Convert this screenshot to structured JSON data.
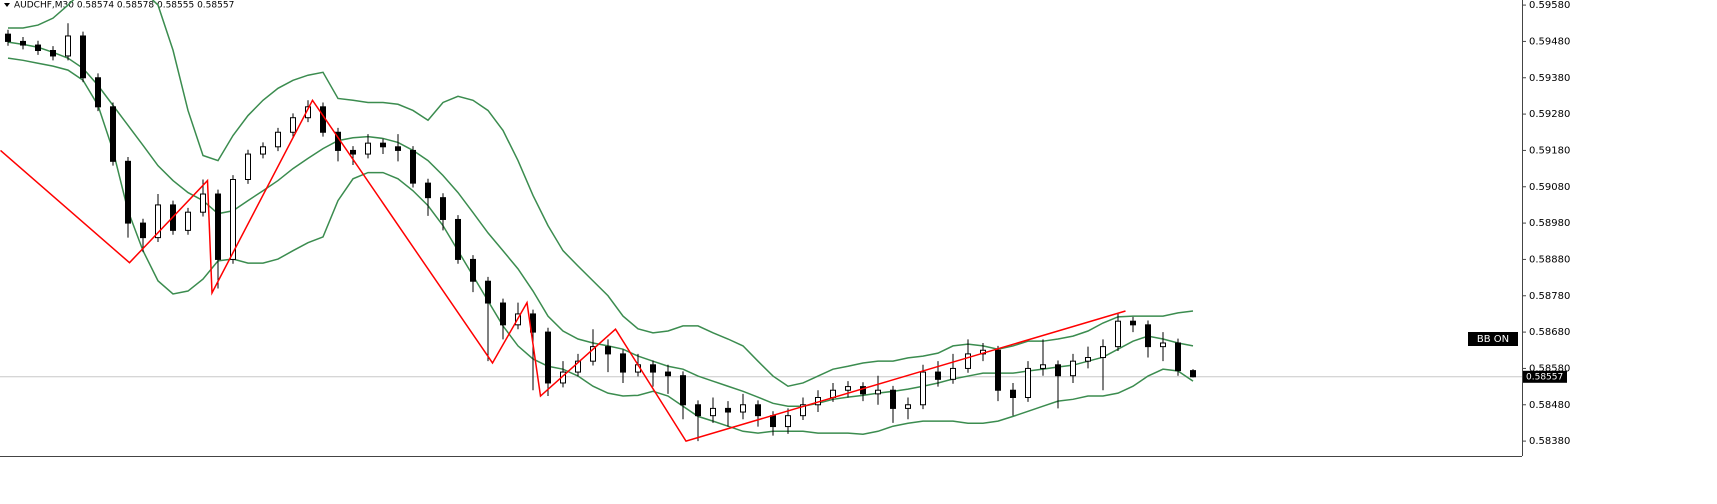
{
  "chart_data": {
    "type": "candlestick",
    "title": "AUDCHF,M30  0.58574 0.58578 0.58555 0.58557",
    "open": [
      0.595,
      0.5948,
      0.5947,
      0.59455,
      0.5944,
      0.59495,
      0.5938,
      0.593,
      0.5915,
      0.5898,
      0.5894,
      0.5903,
      0.5896,
      0.5901,
      0.5906,
      0.5888,
      0.591,
      0.5917,
      0.5919,
      0.5923,
      0.5927,
      0.593,
      0.5923,
      0.5918,
      0.5917,
      0.592,
      0.5919,
      0.5918,
      0.5909,
      0.5905,
      0.5899,
      0.5888,
      0.5882,
      0.5876,
      0.587,
      0.5873,
      0.5868,
      0.5854,
      0.5857,
      0.586,
      0.5864,
      0.5862,
      0.5857,
      0.5859,
      0.5857,
      0.5856,
      0.5848,
      0.5845,
      0.5847,
      0.5846,
      0.5848,
      0.5845,
      0.5842,
      0.5845,
      0.5848,
      0.585,
      0.5852,
      0.5853,
      0.5851,
      0.5852,
      0.5847,
      0.5848,
      0.5857,
      0.5855,
      0.5858,
      0.5862,
      0.5863,
      0.5852,
      0.585,
      0.5858,
      0.5859,
      0.5856,
      0.586,
      0.5861,
      0.5864,
      0.5871,
      0.587,
      0.5864,
      0.5865,
      0.58574
    ],
    "high": [
      0.59512,
      0.59492,
      0.59482,
      0.59467,
      0.5953,
      0.59507,
      0.59392,
      0.59312,
      0.59162,
      0.58992,
      0.5906,
      0.59042,
      0.59022,
      0.591,
      0.59072,
      0.59112,
      0.59182,
      0.59202,
      0.59242,
      0.59282,
      0.59318,
      0.59312,
      0.59242,
      0.59192,
      0.59225,
      0.59212,
      0.59225,
      0.59192,
      0.59102,
      0.59062,
      0.59002,
      0.58892,
      0.58832,
      0.58772,
      0.58761,
      0.58742,
      0.58692,
      0.586,
      0.5862,
      0.58688,
      0.5866,
      0.58632,
      0.5862,
      0.58602,
      0.5859,
      0.58572,
      0.58492,
      0.585,
      0.5849,
      0.5851,
      0.58492,
      0.58462,
      0.5847,
      0.585,
      0.5852,
      0.5854,
      0.58545,
      0.58542,
      0.5856,
      0.58532,
      0.585,
      0.5859,
      0.586,
      0.5862,
      0.5866,
      0.5865,
      0.58642,
      0.5854,
      0.586,
      0.5866,
      0.58602,
      0.5862,
      0.5864,
      0.5866,
      0.5873,
      0.58722,
      0.58712,
      0.5868,
      0.58662,
      0.58578
    ],
    "low": [
      0.59468,
      0.59458,
      0.59443,
      0.59428,
      0.59428,
      0.59368,
      0.59288,
      0.59138,
      0.5894,
      0.589,
      0.58928,
      0.58948,
      0.58948,
      0.58998,
      0.588,
      0.58868,
      0.59088,
      0.59158,
      0.59178,
      0.59218,
      0.59258,
      0.59218,
      0.5915,
      0.5914,
      0.59158,
      0.5917,
      0.5915,
      0.59078,
      0.59,
      0.5896,
      0.58868,
      0.5879,
      0.586,
      0.5866,
      0.58688,
      0.5852,
      0.58504,
      0.58528,
      0.58558,
      0.58588,
      0.5857,
      0.5854,
      0.58558,
      0.5853,
      0.5851,
      0.5844,
      0.5838,
      0.5843,
      0.5842,
      0.5844,
      0.5842,
      0.58395,
      0.584,
      0.58438,
      0.5846,
      0.58488,
      0.585,
      0.5849,
      0.5848,
      0.5843,
      0.5844,
      0.58468,
      0.5853,
      0.58538,
      0.58568,
      0.586,
      0.5849,
      0.5845,
      0.58488,
      0.5856,
      0.5847,
      0.5854,
      0.5858,
      0.5852,
      0.58628,
      0.5868,
      0.5861,
      0.586,
      0.5856,
      0.58555
    ],
    "close": [
      0.5948,
      0.5947,
      0.59455,
      0.5944,
      0.59495,
      0.5938,
      0.593,
      0.5915,
      0.5898,
      0.5894,
      0.5903,
      0.5896,
      0.5901,
      0.5906,
      0.5888,
      0.591,
      0.5917,
      0.5919,
      0.5923,
      0.5927,
      0.593,
      0.5923,
      0.5918,
      0.5917,
      0.592,
      0.5919,
      0.5918,
      0.5909,
      0.5905,
      0.5899,
      0.5888,
      0.5882,
      0.5876,
      0.587,
      0.5873,
      0.5868,
      0.5854,
      0.5857,
      0.586,
      0.5864,
      0.5862,
      0.5857,
      0.5859,
      0.5857,
      0.5856,
      0.5848,
      0.5845,
      0.5847,
      0.5846,
      0.5848,
      0.5845,
      0.5842,
      0.5845,
      0.5848,
      0.585,
      0.5852,
      0.5853,
      0.5851,
      0.5852,
      0.5847,
      0.5848,
      0.5857,
      0.5855,
      0.5858,
      0.5862,
      0.5863,
      0.5852,
      0.585,
      0.5858,
      0.5859,
      0.5856,
      0.586,
      0.5861,
      0.5864,
      0.5871,
      0.587,
      0.5864,
      0.5865,
      0.58574,
      0.58557
    ],
    "up_color": "#ffffff",
    "down_color": "#000000",
    "edge_color": "#000000",
    "bands": {
      "color": "#3b8c4f",
      "upper": [
        0.59517,
        0.59517,
        0.59525,
        0.59544,
        0.5958,
        0.5962,
        0.5965,
        0.5966,
        0.5964,
        0.5962,
        0.5958,
        0.59456,
        0.5929,
        0.59166,
        0.59152,
        0.59221,
        0.59276,
        0.59318,
        0.59351,
        0.59373,
        0.59387,
        0.59395,
        0.59323,
        0.59318,
        0.59312,
        0.59312,
        0.59307,
        0.5929,
        0.59263,
        0.59312,
        0.59329,
        0.59318,
        0.5929,
        0.59235,
        0.59152,
        0.59056,
        0.58973,
        0.58904,
        0.58862,
        0.58821,
        0.5878,
        0.58724,
        0.58689,
        0.58678,
        0.58683,
        0.58697,
        0.58697,
        0.58678,
        0.58661,
        0.58642,
        0.586,
        0.58559,
        0.58531,
        0.5854,
        0.58559,
        0.58578,
        0.58586,
        0.58595,
        0.586,
        0.586,
        0.58609,
        0.58614,
        0.58622,
        0.58642,
        0.58647,
        0.58642,
        0.58633,
        0.58642,
        0.58655,
        0.58655,
        0.58661,
        0.58669,
        0.58683,
        0.58705,
        0.58722,
        0.58724,
        0.58724,
        0.58724,
        0.58733,
        0.58738
      ],
      "middle": [
        0.59478,
        0.59472,
        0.59464,
        0.5945,
        0.59434,
        0.59406,
        0.59359,
        0.59304,
        0.59249,
        0.59194,
        0.59138,
        0.59097,
        0.59064,
        0.59042,
        0.59006,
        0.59014,
        0.59042,
        0.59069,
        0.59097,
        0.5913,
        0.59158,
        0.59185,
        0.59207,
        0.59215,
        0.59218,
        0.59213,
        0.59202,
        0.5918,
        0.59152,
        0.59111,
        0.59064,
        0.59009,
        0.58953,
        0.58904,
        0.58854,
        0.58793,
        0.58724,
        0.58683,
        0.58661,
        0.5865,
        0.58642,
        0.58633,
        0.58614,
        0.586,
        0.58586,
        0.58578,
        0.58559,
        0.58545,
        0.58531,
        0.58517,
        0.58501,
        0.58484,
        0.58476,
        0.58476,
        0.58484,
        0.58495,
        0.58501,
        0.58506,
        0.58512,
        0.58517,
        0.58523,
        0.58531,
        0.5854,
        0.58551,
        0.58559,
        0.58567,
        0.58567,
        0.58567,
        0.58573,
        0.58578,
        0.58584,
        0.58589,
        0.586,
        0.58611,
        0.58633,
        0.58655,
        0.58669,
        0.58661,
        0.5865,
        0.58642
      ],
      "lower": [
        0.59434,
        0.59428,
        0.5942,
        0.59412,
        0.59401,
        0.59373,
        0.59304,
        0.5918,
        0.59014,
        0.58904,
        0.58821,
        0.58785,
        0.58793,
        0.58826,
        0.58876,
        0.58881,
        0.5887,
        0.5887,
        0.58881,
        0.58904,
        0.58926,
        0.58942,
        0.59042,
        0.59102,
        0.59119,
        0.59119,
        0.59102,
        0.59069,
        0.59028,
        0.58973,
        0.58904,
        0.58835,
        0.58766,
        0.58697,
        0.58642,
        0.58606,
        0.58586,
        0.58578,
        0.58559,
        0.58531,
        0.58512,
        0.58504,
        0.58506,
        0.58517,
        0.58504,
        0.58476,
        0.58448,
        0.58435,
        0.58421,
        0.58407,
        0.58402,
        0.58407,
        0.58407,
        0.58407,
        0.58402,
        0.58402,
        0.58402,
        0.58399,
        0.58407,
        0.58421,
        0.58429,
        0.58435,
        0.58435,
        0.58435,
        0.58429,
        0.58429,
        0.58435,
        0.58448,
        0.58462,
        0.58476,
        0.5849,
        0.58495,
        0.58504,
        0.58504,
        0.58512,
        0.58531,
        0.58559,
        0.58578,
        0.58573,
        0.58545
      ]
    },
    "zigzag": {
      "color": "#ff0000",
      "x": [
        -0.5,
        8.1,
        13.3,
        13.6,
        20.3,
        32.3,
        34.6,
        35.5,
        40.5,
        45.2,
        74.5
      ],
      "values": [
        0.5918,
        0.58871,
        0.59097,
        0.58788,
        0.59318,
        0.58595,
        0.58761,
        0.58504,
        0.58688,
        0.5838,
        0.58738
      ]
    },
    "ylim": [
      0.58339,
      0.59594
    ],
    "yticks": [
      {
        "value": 0.5958,
        "label": "0.59580"
      },
      {
        "value": 0.5948,
        "label": "0.59480"
      },
      {
        "value": 0.5938,
        "label": "0.59380"
      },
      {
        "value": 0.5928,
        "label": "0.59280"
      },
      {
        "value": 0.5918,
        "label": "0.59180"
      },
      {
        "value": 0.5908,
        "label": "0.59080"
      },
      {
        "value": 0.5898,
        "label": "0.58980"
      },
      {
        "value": 0.5888,
        "label": "0.58880"
      },
      {
        "value": 0.5878,
        "label": "0.58780"
      },
      {
        "value": 0.5868,
        "label": "0.58680"
      },
      {
        "value": 0.5858,
        "label": "0.58580"
      },
      {
        "value": 0.5848,
        "label": "0.58480"
      },
      {
        "value": 0.5838,
        "label": "0.58380"
      }
    ],
    "last_price": {
      "value": 0.58557,
      "label": "0.58557"
    },
    "button": "BB ON"
  }
}
